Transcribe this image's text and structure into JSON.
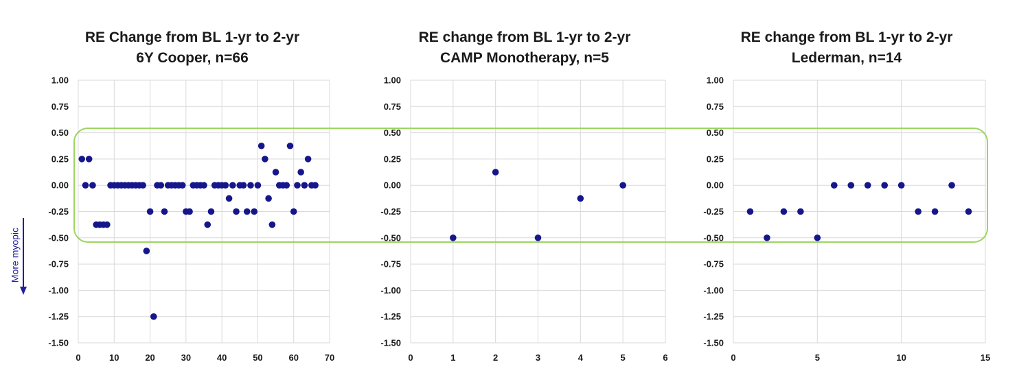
{
  "annotation": {
    "side_label": "More myopic",
    "arrow_color": "#1f1fa0",
    "highlight_color": "#92d050"
  },
  "colors": {
    "marker": "#16168c",
    "grid": "#d9d9d9",
    "text": "#1a1a1a"
  },
  "chart_data": [
    {
      "type": "scatter",
      "title": [
        "RE Change from BL 1-yr to 2-yr",
        "6Y Cooper, n=66"
      ],
      "xlabel": "",
      "ylabel": "",
      "xlim": [
        0,
        70
      ],
      "xticks": [
        0,
        10,
        20,
        30,
        40,
        50,
        60,
        70
      ],
      "ylim": [
        -1.5,
        1.0
      ],
      "yticks": [
        1.0,
        0.75,
        0.5,
        0.25,
        0.0,
        -0.25,
        -0.5,
        -0.75,
        -1.0,
        -1.25,
        -1.5
      ],
      "ytick_labels": [
        "1.00",
        "0.75",
        "0.50",
        "0.25",
        "0.00",
        "-0.25",
        "-0.50",
        "-0.75",
        "-1.00",
        "-1.25",
        "-1.50"
      ],
      "grid": true,
      "x": [
        1,
        2,
        3,
        4,
        5,
        6,
        7,
        8,
        9,
        10,
        11,
        12,
        13,
        14,
        15,
        16,
        17,
        18,
        19,
        20,
        21,
        22,
        23,
        24,
        25,
        26,
        27,
        28,
        29,
        30,
        31,
        32,
        33,
        34,
        35,
        36,
        37,
        38,
        39,
        40,
        41,
        42,
        43,
        44,
        45,
        46,
        47,
        48,
        49,
        50,
        51,
        52,
        53,
        54,
        55,
        56,
        57,
        58,
        59,
        60,
        61,
        62,
        63,
        64,
        65,
        66
      ],
      "y": [
        0.25,
        0,
        0.25,
        0,
        -0.375,
        -0.375,
        -0.375,
        -0.375,
        0,
        0,
        0,
        0,
        0,
        0,
        0,
        0,
        0,
        0,
        -0.625,
        -0.25,
        -1.25,
        0,
        0,
        -0.25,
        0,
        0,
        0,
        0,
        0,
        -0.25,
        -0.25,
        0,
        0,
        0,
        0,
        -0.375,
        -0.25,
        0,
        0,
        0,
        0,
        -0.125,
        0,
        -0.25,
        0,
        0,
        -0.25,
        0,
        -0.25,
        0,
        0.375,
        0.25,
        -0.125,
        -0.375,
        0.125,
        0,
        0,
        0,
        0.375,
        -0.25,
        0,
        0.125,
        0,
        0.25,
        0,
        0
      ]
    },
    {
      "type": "scatter",
      "title": [
        "RE change from BL 1-yr to 2-yr",
        "CAMP Monotherapy, n=5"
      ],
      "xlabel": "",
      "ylabel": "",
      "xlim": [
        0,
        6
      ],
      "xticks": [
        0,
        1,
        2,
        3,
        4,
        5,
        6
      ],
      "ylim": [
        -1.5,
        1.0
      ],
      "yticks": [
        1.0,
        0.75,
        0.5,
        0.25,
        0.0,
        -0.25,
        -0.5,
        -0.75,
        -1.0,
        -1.25,
        -1.5
      ],
      "ytick_labels": [
        "1.00",
        "0.75",
        "0.50",
        "0.25",
        "0.00",
        "-0.25",
        "-0.50",
        "-0.75",
        "-1.00",
        "-1.25",
        "-1.50"
      ],
      "grid": true,
      "x": [
        1,
        2,
        3,
        4,
        5
      ],
      "y": [
        -0.5,
        0.125,
        -0.5,
        -0.125,
        0
      ]
    },
    {
      "type": "scatter",
      "title": [
        "RE change from BL 1-yr to 2-yr",
        "Lederman, n=14"
      ],
      "xlabel": "",
      "ylabel": "",
      "xlim": [
        0,
        15
      ],
      "xticks": [
        0,
        5,
        10,
        15
      ],
      "ylim": [
        -1.5,
        1.0
      ],
      "yticks": [
        1.0,
        0.75,
        0.5,
        0.25,
        0.0,
        -0.25,
        -0.5,
        -0.75,
        -1.0,
        -1.25,
        -1.5
      ],
      "ytick_labels": [
        "1.00",
        "0.75",
        "0.50",
        "0.25",
        "0.00",
        "-0.25",
        "-0.50",
        "-0.75",
        "-1.00",
        "-1.25",
        "-1.50"
      ],
      "grid": true,
      "x": [
        1,
        2,
        3,
        4,
        5,
        6,
        7,
        8,
        9,
        10,
        11,
        12,
        13,
        14
      ],
      "y": [
        -0.25,
        -0.5,
        -0.25,
        -0.25,
        -0.5,
        0,
        0,
        0,
        0,
        0,
        -0.25,
        -0.25,
        0,
        -0.25
      ]
    }
  ]
}
